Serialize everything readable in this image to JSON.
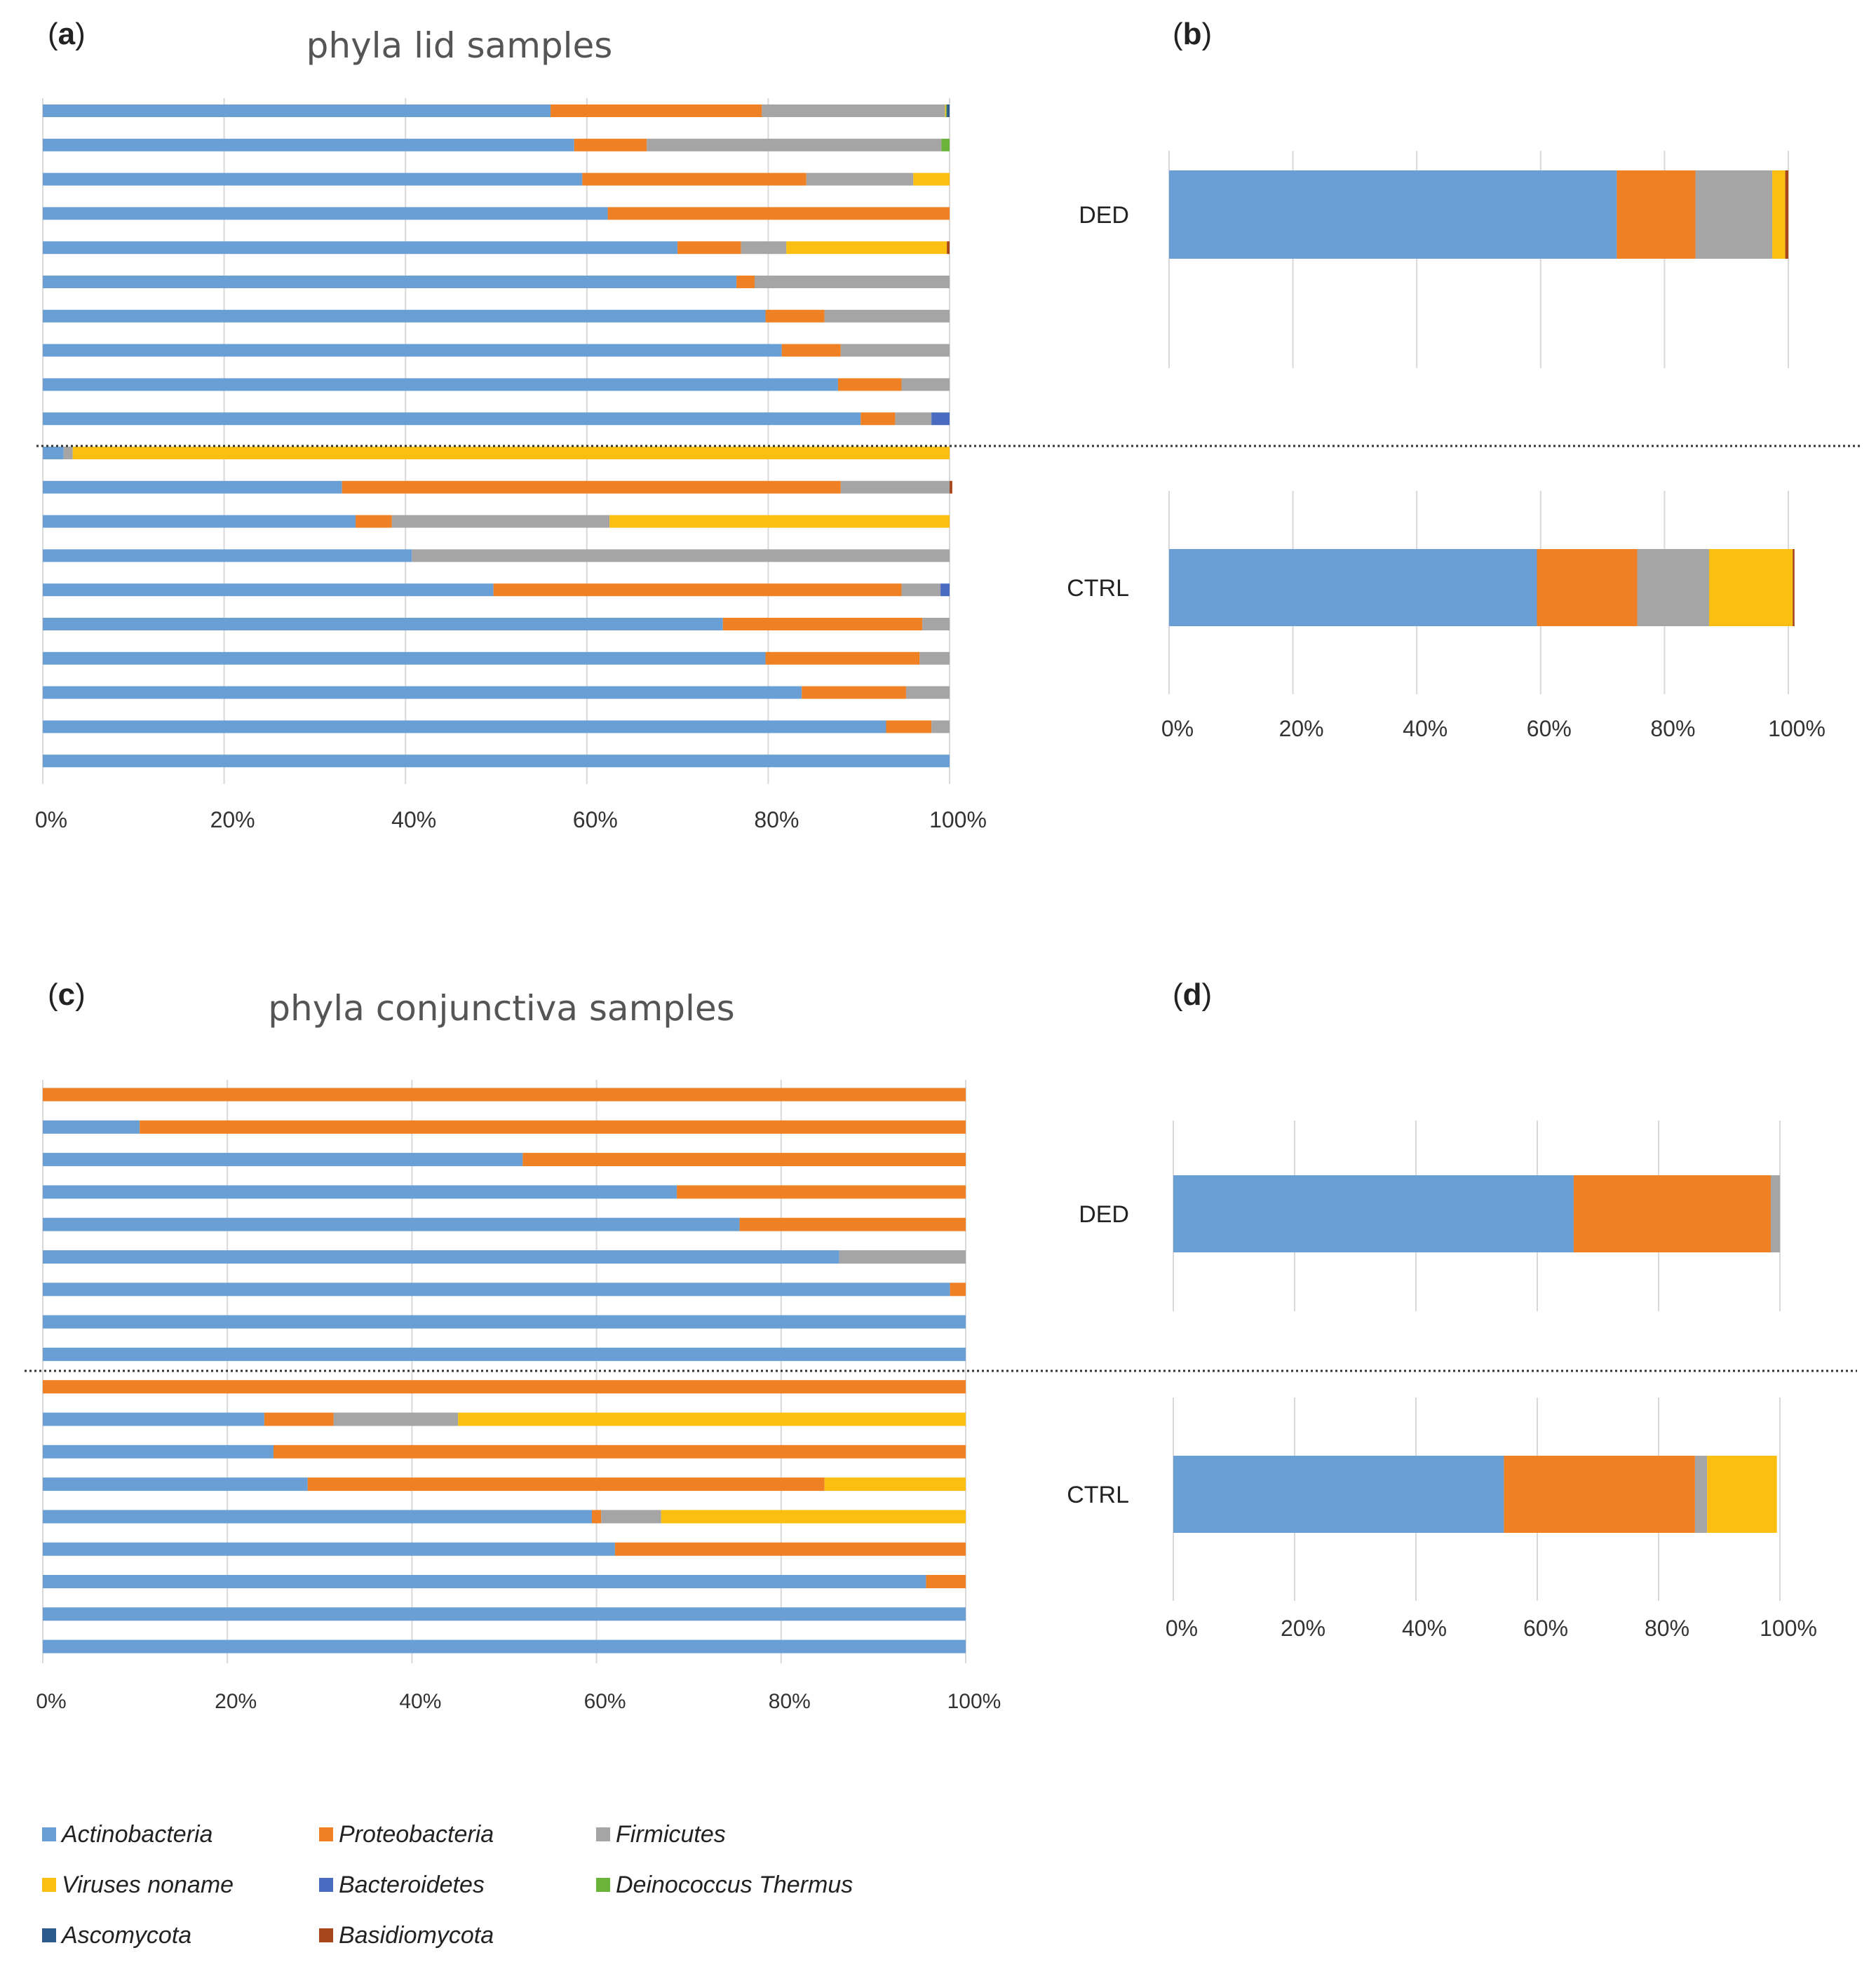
{
  "panels": {
    "a": {
      "letter": "a",
      "title": "phyla lid samples"
    },
    "b": {
      "letter": "b"
    },
    "c": {
      "letter": "c",
      "title": "phyla conjunctiva samples"
    },
    "d": {
      "letter": "d"
    }
  },
  "chart_data": [
    {
      "panel": "a",
      "type": "bar",
      "stacked": true,
      "orientation": "horizontal",
      "title": "phyla lid samples",
      "xlim": [
        0,
        100
      ],
      "x_ticks": [
        "0%",
        "20%",
        "40%",
        "60%",
        "80%",
        "100%"
      ],
      "groups": [
        "DED",
        "CTRL"
      ],
      "series_names": [
        "Actinobacteria",
        "Proteobacteria",
        "Firmicutes",
        "Viruses noname",
        "Bacteroidetes",
        "Deinococcus Thermus",
        "Ascomycota",
        "Basidiomycota"
      ],
      "rows": [
        {
          "group": "DED",
          "values": [
            56,
            23.3,
            20.2,
            0.1,
            0,
            0.1,
            0.3,
            0
          ]
        },
        {
          "group": "DED",
          "values": [
            58.6,
            8,
            32.5,
            0,
            0,
            0.9,
            0,
            0
          ]
        },
        {
          "group": "DED",
          "values": [
            59.5,
            24.7,
            11.8,
            4,
            0,
            0,
            0,
            0
          ]
        },
        {
          "group": "DED",
          "values": [
            62.3,
            37.7,
            0,
            0,
            0,
            0,
            0,
            0
          ]
        },
        {
          "group": "DED",
          "values": [
            70,
            7,
            5,
            17.7,
            0,
            0,
            0,
            0.3
          ]
        },
        {
          "group": "DED",
          "values": [
            76.5,
            2,
            21.5,
            0,
            0,
            0,
            0,
            0
          ]
        },
        {
          "group": "DED",
          "values": [
            79.7,
            6.5,
            13.8,
            0,
            0,
            0,
            0,
            0
          ]
        },
        {
          "group": "DED",
          "values": [
            81.5,
            6.5,
            12,
            0,
            0,
            0,
            0,
            0
          ]
        },
        {
          "group": "DED",
          "values": [
            87.7,
            7,
            5.3,
            0,
            0,
            0,
            0,
            0
          ]
        },
        {
          "group": "DED",
          "values": [
            90.2,
            3.8,
            4,
            0,
            2,
            0,
            0,
            0
          ]
        },
        {
          "group": "CTRL",
          "values": [
            2.3,
            0,
            1,
            96.7,
            0,
            0,
            0,
            0
          ]
        },
        {
          "group": "CTRL",
          "values": [
            33,
            55,
            12,
            0,
            0,
            0,
            0,
            0.3
          ]
        },
        {
          "group": "CTRL",
          "values": [
            34.5,
            4,
            24,
            37.5,
            0,
            0,
            0,
            0
          ]
        },
        {
          "group": "CTRL",
          "values": [
            40.7,
            0,
            59.3,
            0,
            0,
            0,
            0,
            0
          ]
        },
        {
          "group": "CTRL",
          "values": [
            49.7,
            45,
            4.3,
            0,
            1,
            0,
            0,
            0
          ]
        },
        {
          "group": "CTRL",
          "values": [
            75,
            22,
            3,
            0,
            0,
            0,
            0,
            0
          ]
        },
        {
          "group": "CTRL",
          "values": [
            79.7,
            17,
            3.3,
            0,
            0,
            0,
            0,
            0
          ]
        },
        {
          "group": "CTRL",
          "values": [
            83.7,
            11.5,
            4.8,
            0,
            0,
            0,
            0,
            0
          ]
        },
        {
          "group": "CTRL",
          "values": [
            93,
            5,
            2,
            0,
            0,
            0,
            0,
            0
          ]
        },
        {
          "group": "CTRL",
          "values": [
            100,
            0,
            0,
            0,
            0,
            0,
            0,
            0
          ]
        }
      ],
      "grid": true
    },
    {
      "panel": "b",
      "type": "bar",
      "stacked": true,
      "orientation": "horizontal",
      "xlim": [
        0,
        100
      ],
      "x_ticks": [
        "0%",
        "20%",
        "40%",
        "60%",
        "80%",
        "100%"
      ],
      "categories": [
        "DED",
        "CTRL"
      ],
      "series": [
        {
          "name": "Actinobacteria",
          "values": [
            72.3,
            59.4
          ]
        },
        {
          "name": "Proteobacteria",
          "values": [
            12.7,
            16.2
          ]
        },
        {
          "name": "Firmicutes",
          "values": [
            12.4,
            11.6
          ]
        },
        {
          "name": "Viruses noname",
          "values": [
            2.1,
            13.5
          ]
        },
        {
          "name": "Bacteroidetes",
          "values": [
            0,
            0
          ]
        },
        {
          "name": "Deinococcus Thermus",
          "values": [
            0,
            0
          ]
        },
        {
          "name": "Ascomycota",
          "values": [
            0,
            0
          ]
        },
        {
          "name": "Basidiomycota",
          "values": [
            0.5,
            0.3
          ]
        }
      ],
      "grid": true
    },
    {
      "panel": "c",
      "type": "bar",
      "stacked": true,
      "orientation": "horizontal",
      "title": "phyla conjunctiva samples",
      "xlim": [
        0,
        100
      ],
      "x_ticks": [
        "0%",
        "20%",
        "40%",
        "60%",
        "80%",
        "100%"
      ],
      "groups": [
        "DED",
        "CTRL"
      ],
      "series_names": [
        "Actinobacteria",
        "Proteobacteria",
        "Firmicutes",
        "Viruses noname",
        "Bacteroidetes",
        "Deinococcus Thermus",
        "Ascomycota",
        "Basidiomycota"
      ],
      "rows": [
        {
          "group": "DED",
          "values": [
            0,
            100,
            0,
            0,
            0,
            0,
            0,
            0
          ]
        },
        {
          "group": "DED",
          "values": [
            10.5,
            89.5,
            0,
            0,
            0,
            0,
            0,
            0
          ]
        },
        {
          "group": "DED",
          "values": [
            52,
            48,
            0,
            0,
            0,
            0,
            0,
            0
          ]
        },
        {
          "group": "DED",
          "values": [
            68.7,
            31.3,
            0,
            0,
            0,
            0,
            0,
            0
          ]
        },
        {
          "group": "DED",
          "values": [
            75.5,
            24.5,
            0,
            0,
            0,
            0,
            0,
            0
          ]
        },
        {
          "group": "DED",
          "values": [
            86.3,
            0,
            13.7,
            0,
            0,
            0,
            0,
            0
          ]
        },
        {
          "group": "DED",
          "values": [
            98.3,
            1.7,
            0,
            0,
            0,
            0,
            0,
            0
          ]
        },
        {
          "group": "DED",
          "values": [
            100,
            0,
            0,
            0,
            0,
            0,
            0,
            0
          ]
        },
        {
          "group": "DED",
          "values": [
            100,
            0,
            0,
            0,
            0,
            0,
            0,
            0
          ]
        },
        {
          "group": "CTRL",
          "values": [
            0,
            100,
            0,
            0,
            0,
            0,
            0,
            0
          ]
        },
        {
          "group": "CTRL",
          "values": [
            24,
            7.5,
            13.5,
            55,
            0,
            0,
            0,
            0
          ]
        },
        {
          "group": "CTRL",
          "values": [
            25,
            75,
            0,
            0,
            0,
            0,
            0,
            0
          ]
        },
        {
          "group": "CTRL",
          "values": [
            28.7,
            56,
            0,
            15.3,
            0,
            0,
            0,
            0
          ]
        },
        {
          "group": "CTRL",
          "values": [
            59.5,
            1,
            6.5,
            33,
            0,
            0,
            0,
            0
          ]
        },
        {
          "group": "CTRL",
          "values": [
            62,
            38,
            0,
            0,
            0,
            0,
            0,
            0
          ]
        },
        {
          "group": "CTRL",
          "values": [
            95.7,
            4.3,
            0,
            0,
            0,
            0,
            0,
            0
          ]
        },
        {
          "group": "CTRL",
          "values": [
            100,
            0,
            0,
            0,
            0,
            0,
            0,
            0
          ]
        },
        {
          "group": "CTRL",
          "values": [
            100,
            0,
            0,
            0,
            0,
            0,
            0,
            0
          ]
        }
      ],
      "grid": true
    },
    {
      "panel": "d",
      "type": "bar",
      "stacked": true,
      "orientation": "horizontal",
      "xlim": [
        0,
        100
      ],
      "x_ticks": [
        "0%",
        "20%",
        "40%",
        "60%",
        "80%",
        "100%"
      ],
      "categories": [
        "DED",
        "CTRL"
      ],
      "series": [
        {
          "name": "Actinobacteria",
          "values": [
            66,
            54.5
          ]
        },
        {
          "name": "Proteobacteria",
          "values": [
            32.5,
            31.5
          ]
        },
        {
          "name": "Firmicutes",
          "values": [
            1.5,
            2
          ]
        },
        {
          "name": "Viruses noname",
          "values": [
            0,
            11.5
          ]
        },
        {
          "name": "Bacteroidetes",
          "values": [
            0,
            0
          ]
        },
        {
          "name": "Deinococcus Thermus",
          "values": [
            0,
            0
          ]
        },
        {
          "name": "Ascomycota",
          "values": [
            0,
            0
          ]
        },
        {
          "name": "Basidiomycota",
          "values": [
            0,
            0
          ]
        }
      ],
      "grid": true
    }
  ],
  "legend": {
    "placement": "bottom-left",
    "items": [
      {
        "label": "Actinobacteria",
        "color": "#699fd4"
      },
      {
        "label": "Proteobacteria",
        "color": "#f08024"
      },
      {
        "label": "Firmicutes",
        "color": "#a5a5a5"
      },
      {
        "label": "Viruses noname",
        "color": "#fbbf11"
      },
      {
        "label": "Bacteroidetes",
        "color": "#4a6cc0"
      },
      {
        "label": "Deinococcus Thermus",
        "color": "#6cb33b"
      },
      {
        "label": "Ascomycota",
        "color": "#2c5a8c"
      },
      {
        "label": "Basidiomycota",
        "color": "#a6461a"
      }
    ]
  }
}
